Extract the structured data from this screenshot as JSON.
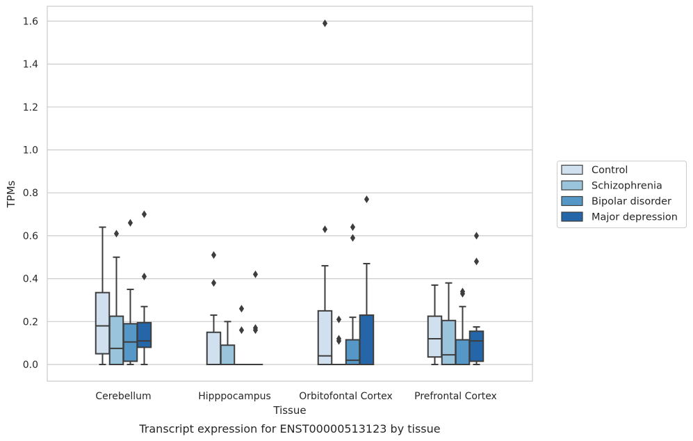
{
  "chart_data": {
    "type": "boxplot",
    "xlabel": "Tissue",
    "ylabel": "TPMs",
    "caption": "Transcript expression for ENST00000513123 by tissue",
    "ylim": [
      -0.08,
      1.67
    ],
    "yticks": [
      "0.0",
      "0.2",
      "0.4",
      "0.6",
      "0.8",
      "1.0",
      "1.2",
      "1.4",
      "1.6"
    ],
    "grid": "horizontal",
    "legend_position": "right",
    "categories": [
      "Cerebellum",
      "Hipppocampus",
      "Orbitofontal Cortex",
      "Prefrontal Cortex"
    ],
    "series": [
      {
        "name": "Control",
        "color": "#d0e0ef",
        "boxes": [
          {
            "whislo": 0.0,
            "q1": 0.05,
            "med": 0.18,
            "q3": 0.335,
            "whishi": 0.64,
            "fliers": []
          },
          {
            "whislo": 0.0,
            "q1": 0.0,
            "med": 0.0,
            "q3": 0.15,
            "whishi": 0.23,
            "fliers": [
              0.38,
              0.51
            ]
          },
          {
            "whislo": 0.0,
            "q1": 0.0,
            "med": 0.04,
            "q3": 0.25,
            "whishi": 0.46,
            "fliers": [
              0.63,
              1.59
            ]
          },
          {
            "whislo": 0.0,
            "q1": 0.035,
            "med": 0.12,
            "q3": 0.225,
            "whishi": 0.37,
            "fliers": []
          }
        ]
      },
      {
        "name": "Schizophrenia",
        "color": "#9ac3dc",
        "boxes": [
          {
            "whislo": 0.0,
            "q1": 0.0,
            "med": 0.075,
            "q3": 0.225,
            "whishi": 0.5,
            "fliers": [
              0.61
            ]
          },
          {
            "whislo": 0.0,
            "q1": 0.0,
            "med": 0.0,
            "q3": 0.09,
            "whishi": 0.2,
            "fliers": []
          },
          {
            "whislo": 0.0,
            "q1": 0.0,
            "med": 0.0,
            "q3": 0.0,
            "whishi": 0.0,
            "fliers": [
              0.11,
              0.12,
              0.21
            ]
          },
          {
            "whislo": 0.0,
            "q1": 0.0,
            "med": 0.045,
            "q3": 0.205,
            "whishi": 0.38,
            "fliers": []
          }
        ]
      },
      {
        "name": "Bipolar disorder",
        "color": "#5597c6",
        "boxes": [
          {
            "whislo": 0.0,
            "q1": 0.015,
            "med": 0.105,
            "q3": 0.19,
            "whishi": 0.35,
            "fliers": [
              0.66
            ]
          },
          {
            "whislo": 0.0,
            "q1": 0.0,
            "med": 0.0,
            "q3": 0.0,
            "whishi": 0.0,
            "fliers": [
              0.16,
              0.26
            ]
          },
          {
            "whislo": 0.0,
            "q1": 0.0,
            "med": 0.02,
            "q3": 0.115,
            "whishi": 0.22,
            "fliers": [
              0.59,
              0.64
            ]
          },
          {
            "whislo": 0.0,
            "q1": 0.0,
            "med": 0.0,
            "q3": 0.115,
            "whishi": 0.27,
            "fliers": [
              0.33,
              0.34
            ]
          }
        ]
      },
      {
        "name": "Major depression",
        "color": "#2466a8",
        "boxes": [
          {
            "whislo": 0.0,
            "q1": 0.08,
            "med": 0.11,
            "q3": 0.195,
            "whishi": 0.27,
            "fliers": [
              0.41,
              0.7
            ]
          },
          {
            "whislo": 0.0,
            "q1": 0.0,
            "med": 0.0,
            "q3": 0.0,
            "whishi": 0.0,
            "fliers": [
              0.16,
              0.17,
              0.42
            ]
          },
          {
            "whislo": 0.0,
            "q1": 0.0,
            "med": 0.0,
            "q3": 0.23,
            "whishi": 0.47,
            "fliers": [
              0.77
            ]
          },
          {
            "whislo": 0.0,
            "q1": 0.015,
            "med": 0.11,
            "q3": 0.155,
            "whishi": 0.175,
            "fliers": [
              0.48,
              0.6
            ]
          }
        ]
      }
    ]
  }
}
